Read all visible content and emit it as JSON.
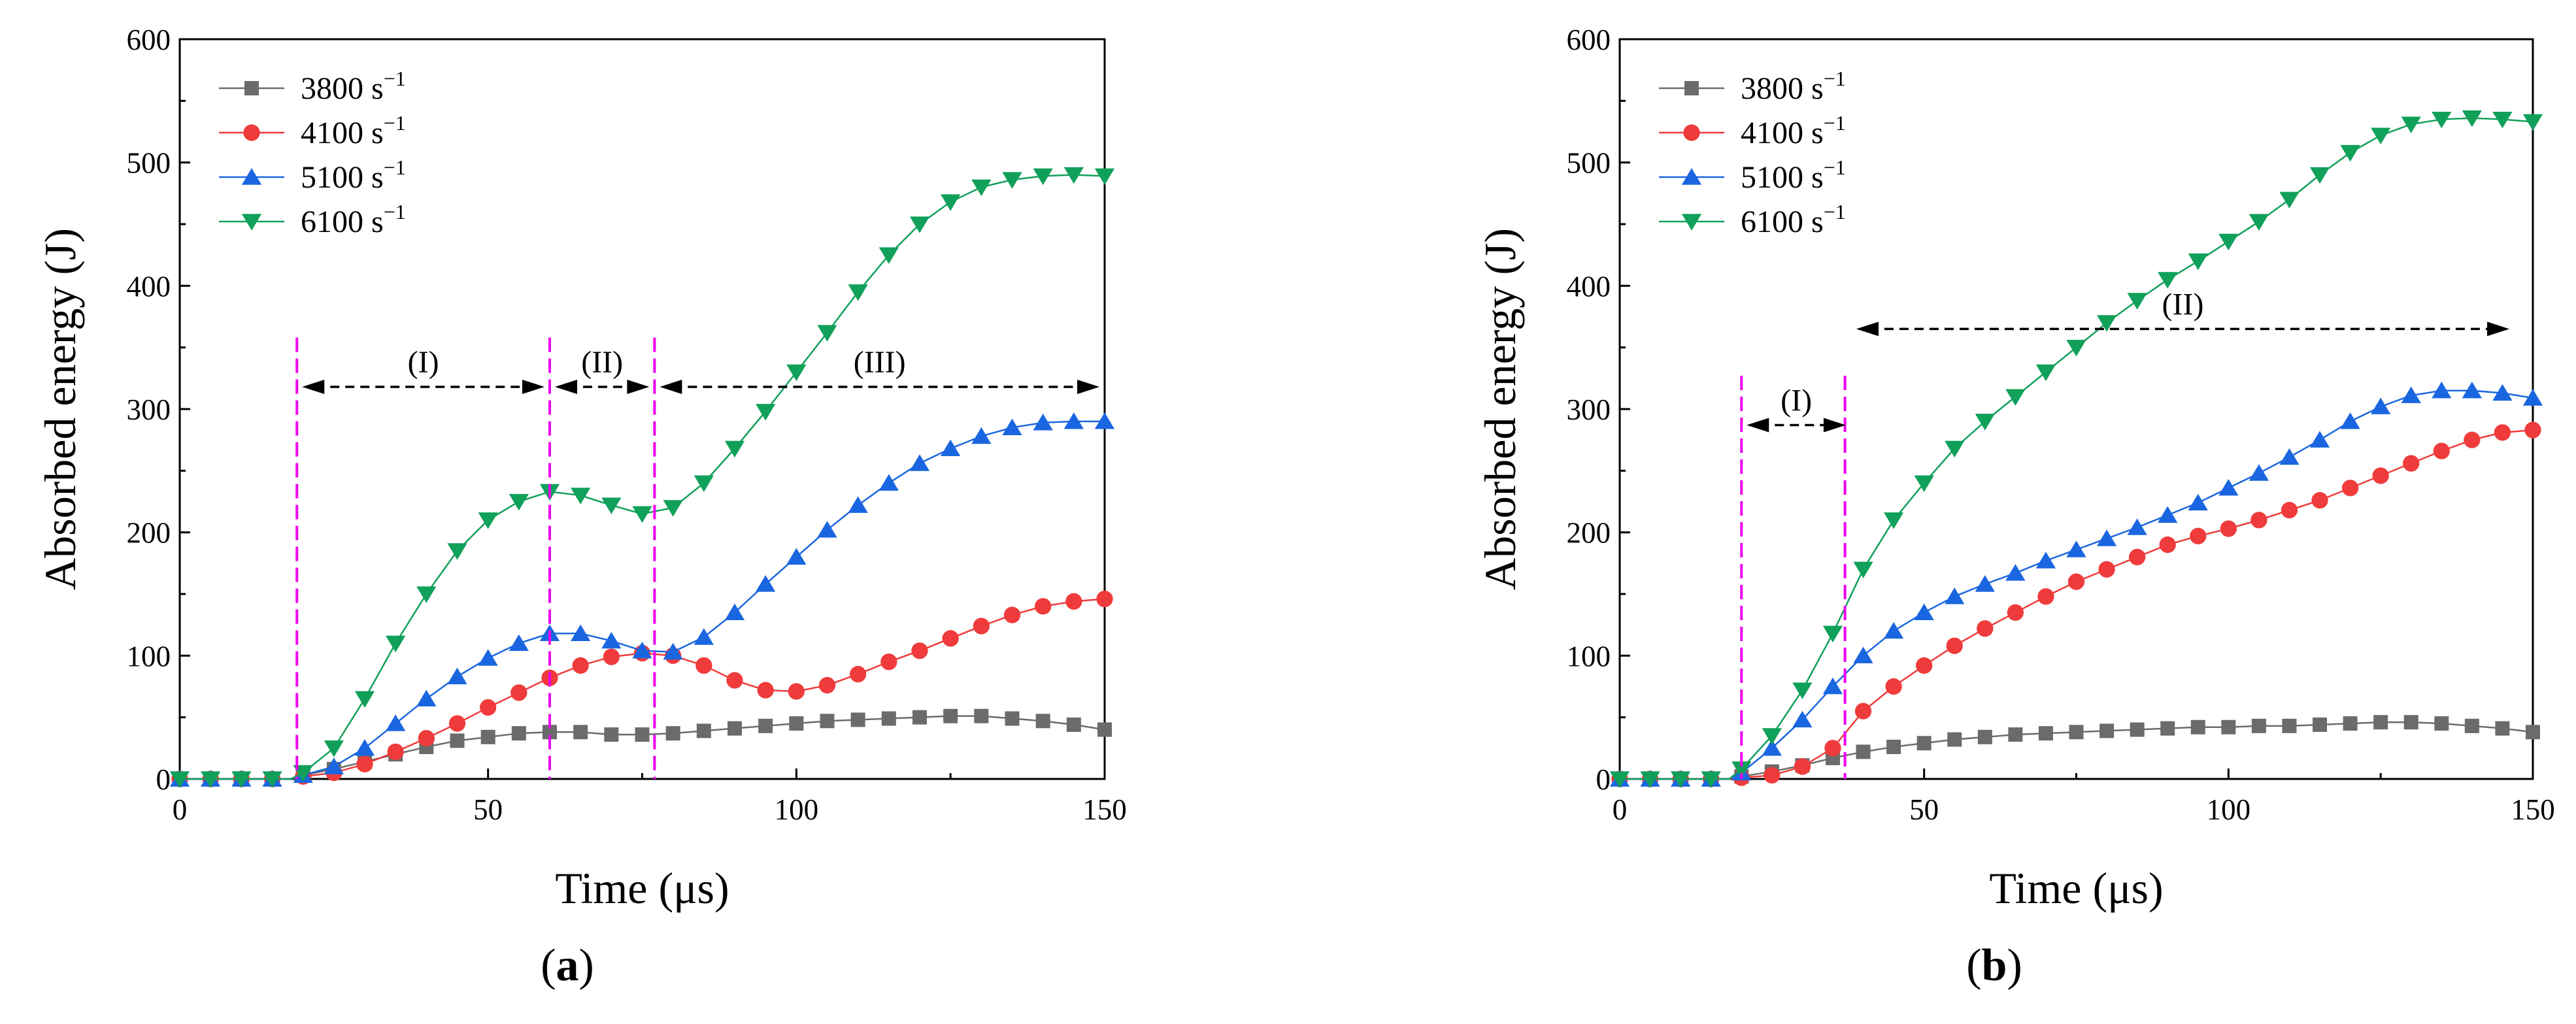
{
  "figure": {
    "panel_labels": [
      {
        "open": "(",
        "letter": "a",
        "close": ")"
      },
      {
        "open": "(",
        "letter": "b",
        "close": ")"
      }
    ]
  },
  "legend": [
    {
      "value": "3800 s",
      "sup": "−1",
      "color": "#6b6b6b",
      "marker": "square"
    },
    {
      "value": "4100 s",
      "sup": "−1",
      "color": "#ef3b3b",
      "marker": "circle"
    },
    {
      "value": "5100 s",
      "sup": "−1",
      "color": "#1a66e0",
      "marker": "triangle-up"
    },
    {
      "value": "6100 s",
      "sup": "−1",
      "color": "#10a05a",
      "marker": "triangle-down"
    }
  ],
  "colors": {
    "guide": "#ee00ee",
    "arrow": "#000000"
  },
  "chart_data": [
    {
      "type": "line",
      "panel": "a",
      "xlabel": "Time (μs)",
      "ylabel": "Absorbed energy (J)",
      "xlim": [
        0,
        150
      ],
      "ylim": [
        0,
        600
      ],
      "xticks": [
        0,
        50,
        100,
        150
      ],
      "yticks": [
        0,
        100,
        200,
        300,
        400,
        500,
        600
      ],
      "grid": false,
      "legend_position": "top-left",
      "series": [
        {
          "name": "3800 s−1",
          "points": [
            [
              0,
              0
            ],
            [
              18,
              0
            ],
            [
              20,
              3
            ],
            [
              25,
              8
            ],
            [
              30,
              14
            ],
            [
              35,
              20
            ],
            [
              40,
              26
            ],
            [
              45,
              31
            ],
            [
              50,
              34
            ],
            [
              55,
              37
            ],
            [
              60,
              38
            ],
            [
              65,
              38
            ],
            [
              70,
              36
            ],
            [
              75,
              36
            ],
            [
              80,
              37
            ],
            [
              85,
              39
            ],
            [
              90,
              41
            ],
            [
              95,
              43
            ],
            [
              100,
              45
            ],
            [
              105,
              47
            ],
            [
              110,
              48
            ],
            [
              115,
              49
            ],
            [
              120,
              50
            ],
            [
              125,
              51
            ],
            [
              130,
              51
            ],
            [
              135,
              49
            ],
            [
              140,
              47
            ],
            [
              145,
              44
            ],
            [
              150,
              40
            ]
          ]
        },
        {
          "name": "4100 s−1",
          "points": [
            [
              0,
              0
            ],
            [
              18,
              0
            ],
            [
              20,
              2
            ],
            [
              25,
              5
            ],
            [
              30,
              12
            ],
            [
              35,
              22
            ],
            [
              40,
              33
            ],
            [
              45,
              45
            ],
            [
              50,
              58
            ],
            [
              55,
              70
            ],
            [
              60,
              82
            ],
            [
              65,
              92
            ],
            [
              70,
              99
            ],
            [
              75,
              102
            ],
            [
              80,
              100
            ],
            [
              85,
              92
            ],
            [
              90,
              80
            ],
            [
              95,
              72
            ],
            [
              100,
              71
            ],
            [
              105,
              76
            ],
            [
              110,
              85
            ],
            [
              115,
              95
            ],
            [
              120,
              104
            ],
            [
              125,
              114
            ],
            [
              130,
              124
            ],
            [
              135,
              133
            ],
            [
              140,
              140
            ],
            [
              145,
              144
            ],
            [
              150,
              146
            ]
          ]
        },
        {
          "name": "5100 s−1",
          "points": [
            [
              0,
              0
            ],
            [
              18,
              0
            ],
            [
              20,
              3
            ],
            [
              25,
              10
            ],
            [
              30,
              25
            ],
            [
              35,
              45
            ],
            [
              40,
              65
            ],
            [
              45,
              83
            ],
            [
              50,
              98
            ],
            [
              55,
              110
            ],
            [
              60,
              118
            ],
            [
              65,
              118
            ],
            [
              70,
              112
            ],
            [
              75,
              104
            ],
            [
              80,
              103
            ],
            [
              85,
              115
            ],
            [
              90,
              135
            ],
            [
              95,
              158
            ],
            [
              100,
              180
            ],
            [
              105,
              202
            ],
            [
              110,
              222
            ],
            [
              115,
              240
            ],
            [
              120,
              256
            ],
            [
              125,
              268
            ],
            [
              130,
              278
            ],
            [
              135,
              285
            ],
            [
              140,
              289
            ],
            [
              145,
              290
            ],
            [
              150,
              290
            ]
          ]
        },
        {
          "name": "6100 s−1",
          "points": [
            [
              0,
              0
            ],
            [
              18,
              0
            ],
            [
              20,
              5
            ],
            [
              25,
              25
            ],
            [
              30,
              65
            ],
            [
              35,
              110
            ],
            [
              40,
              150
            ],
            [
              45,
              185
            ],
            [
              50,
              210
            ],
            [
              55,
              225
            ],
            [
              60,
              233
            ],
            [
              65,
              230
            ],
            [
              70,
              222
            ],
            [
              75,
              215
            ],
            [
              80,
              220
            ],
            [
              85,
              240
            ],
            [
              90,
              268
            ],
            [
              95,
              298
            ],
            [
              100,
              330
            ],
            [
              105,
              362
            ],
            [
              110,
              395
            ],
            [
              115,
              425
            ],
            [
              120,
              450
            ],
            [
              125,
              468
            ],
            [
              130,
              480
            ],
            [
              135,
              486
            ],
            [
              140,
              489
            ],
            [
              145,
              490
            ],
            [
              150,
              489
            ]
          ]
        }
      ],
      "guides": [
        19,
        60,
        77
      ],
      "stages": [
        {
          "label": "(I)",
          "x_start": 19,
          "x_end": 60,
          "y": 318
        },
        {
          "label": "(II)",
          "x_start": 60,
          "x_end": 77,
          "y": 318
        },
        {
          "label": "(III)",
          "x_start": 77,
          "x_end": 150,
          "y": 318
        }
      ]
    },
    {
      "type": "line",
      "panel": "b",
      "xlabel": "Time (μs)",
      "ylabel": "Absorbed energy (J)",
      "xlim": [
        0,
        150
      ],
      "ylim": [
        0,
        600
      ],
      "xticks": [
        0,
        50,
        100,
        150
      ],
      "yticks": [
        0,
        100,
        200,
        300,
        400,
        500,
        600
      ],
      "grid": false,
      "legend_position": "top-left",
      "series": [
        {
          "name": "3800 s−1",
          "points": [
            [
              0,
              0
            ],
            [
              18,
              0
            ],
            [
              20,
              2
            ],
            [
              25,
              6
            ],
            [
              30,
              11
            ],
            [
              35,
              17
            ],
            [
              40,
              22
            ],
            [
              45,
              26
            ],
            [
              50,
              29
            ],
            [
              55,
              32
            ],
            [
              60,
              34
            ],
            [
              65,
              36
            ],
            [
              70,
              37
            ],
            [
              75,
              38
            ],
            [
              80,
              39
            ],
            [
              85,
              40
            ],
            [
              90,
              41
            ],
            [
              95,
              42
            ],
            [
              100,
              42
            ],
            [
              105,
              43
            ],
            [
              110,
              43
            ],
            [
              115,
              44
            ],
            [
              120,
              45
            ],
            [
              125,
              46
            ],
            [
              130,
              46
            ],
            [
              135,
              45
            ],
            [
              140,
              43
            ],
            [
              145,
              41
            ],
            [
              150,
              38
            ]
          ]
        },
        {
          "name": "4100 s−1",
          "points": [
            [
              0,
              0
            ],
            [
              18,
              0
            ],
            [
              20,
              1
            ],
            [
              25,
              3
            ],
            [
              30,
              10
            ],
            [
              35,
              25
            ],
            [
              40,
              55
            ],
            [
              45,
              75
            ],
            [
              50,
              92
            ],
            [
              55,
              108
            ],
            [
              60,
              122
            ],
            [
              65,
              135
            ],
            [
              70,
              148
            ],
            [
              75,
              160
            ],
            [
              80,
              170
            ],
            [
              85,
              180
            ],
            [
              90,
              190
            ],
            [
              95,
              197
            ],
            [
              100,
              203
            ],
            [
              105,
              210
            ],
            [
              110,
              218
            ],
            [
              115,
              226
            ],
            [
              120,
              236
            ],
            [
              125,
              246
            ],
            [
              130,
              256
            ],
            [
              135,
              266
            ],
            [
              140,
              275
            ],
            [
              145,
              281
            ],
            [
              150,
              283
            ]
          ]
        },
        {
          "name": "5100 s−1",
          "points": [
            [
              0,
              0
            ],
            [
              18,
              0
            ],
            [
              20,
              5
            ],
            [
              25,
              25
            ],
            [
              30,
              48
            ],
            [
              35,
              75
            ],
            [
              40,
              100
            ],
            [
              45,
              120
            ],
            [
              50,
              135
            ],
            [
              55,
              148
            ],
            [
              60,
              158
            ],
            [
              65,
              167
            ],
            [
              70,
              177
            ],
            [
              75,
              186
            ],
            [
              80,
              195
            ],
            [
              85,
              204
            ],
            [
              90,
              214
            ],
            [
              95,
              224
            ],
            [
              100,
              236
            ],
            [
              105,
              248
            ],
            [
              110,
              261
            ],
            [
              115,
              275
            ],
            [
              120,
              290
            ],
            [
              125,
              302
            ],
            [
              130,
              311
            ],
            [
              135,
              315
            ],
            [
              140,
              315
            ],
            [
              145,
              313
            ],
            [
              150,
              309
            ]
          ]
        },
        {
          "name": "6100 s−1",
          "points": [
            [
              0,
              0
            ],
            [
              18,
              0
            ],
            [
              20,
              8
            ],
            [
              25,
              35
            ],
            [
              30,
              72
            ],
            [
              35,
              118
            ],
            [
              40,
              170
            ],
            [
              45,
              210
            ],
            [
              50,
              240
            ],
            [
              55,
              268
            ],
            [
              60,
              290
            ],
            [
              65,
              310
            ],
            [
              70,
              330
            ],
            [
              75,
              350
            ],
            [
              80,
              370
            ],
            [
              85,
              388
            ],
            [
              90,
              405
            ],
            [
              95,
              420
            ],
            [
              100,
              436
            ],
            [
              105,
              452
            ],
            [
              110,
              470
            ],
            [
              115,
              490
            ],
            [
              120,
              508
            ],
            [
              125,
              522
            ],
            [
              130,
              531
            ],
            [
              135,
              535
            ],
            [
              140,
              536
            ],
            [
              145,
              535
            ],
            [
              150,
              533
            ]
          ]
        }
      ],
      "guides": [
        20,
        37
      ],
      "stages": [
        {
          "label": "(I)",
          "x_start": 20,
          "x_end": 38,
          "y": 287
        },
        {
          "label": "(II)",
          "x_start": 38,
          "x_end": 147,
          "y": 365
        }
      ]
    }
  ]
}
